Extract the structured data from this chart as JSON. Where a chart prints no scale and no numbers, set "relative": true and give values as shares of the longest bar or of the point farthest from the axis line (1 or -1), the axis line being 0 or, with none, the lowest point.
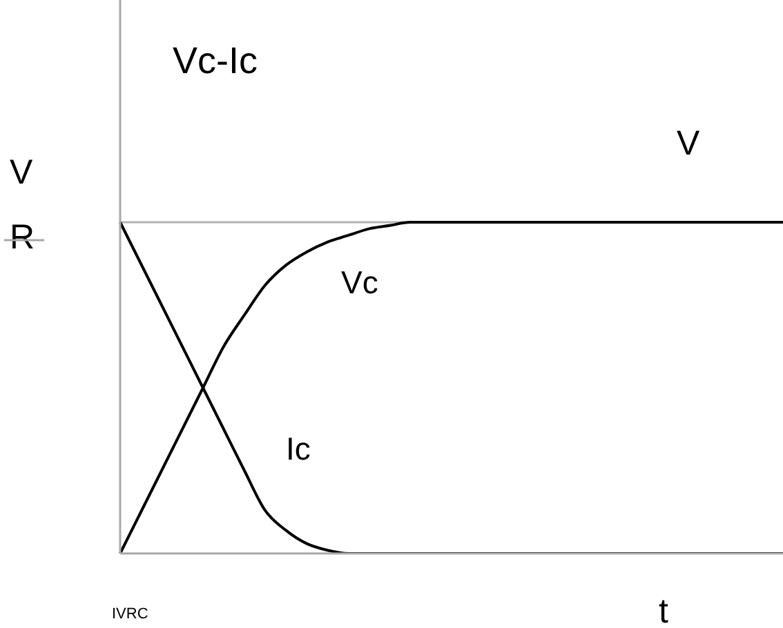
{
  "chart_data": {
    "type": "line",
    "title": "Vc-Ic",
    "xlabel": "t",
    "relative": true,
    "marker": "none",
    "line_style": "solid",
    "categories": [
      null,
      null,
      null,
      null,
      null,
      null,
      null,
      null,
      null,
      null,
      null,
      null,
      null,
      null,
      null,
      null,
      null,
      null,
      null,
      null,
      null,
      null,
      null,
      null,
      null,
      null,
      null,
      null,
      null,
      null,
      null,
      null,
      null
    ],
    "series": [
      {
        "name": "Vc",
        "color": "#000000",
        "values": [
          0,
          0.125,
          0.25,
          0.375,
          0.5,
          0.625,
          0.72,
          0.81,
          0.87,
          0.91,
          0.94,
          0.96,
          0.98,
          0.99,
          1,
          1,
          1,
          1,
          1,
          1,
          1,
          1,
          1,
          1,
          1,
          1,
          1,
          1,
          1,
          1,
          1,
          1,
          1
        ]
      },
      {
        "name": "Ic",
        "color": "#000000",
        "values": [
          1,
          0.875,
          0.75,
          0.625,
          0.5,
          0.375,
          0.25,
          0.13,
          0.07,
          0.03,
          0.01,
          0,
          0,
          0,
          0,
          0,
          0,
          0,
          0,
          0,
          0,
          0,
          0,
          0,
          0,
          0,
          0,
          0,
          0,
          0,
          0,
          0,
          0
        ]
      }
    ],
    "ref_lines": [
      {
        "axis": "y",
        "value": 1,
        "color": "#b4b4b4"
      }
    ],
    "annotations": [
      "V",
      "R",
      {
        "text": "V",
        "y": 1
      },
      "IVRC"
    ]
  }
}
